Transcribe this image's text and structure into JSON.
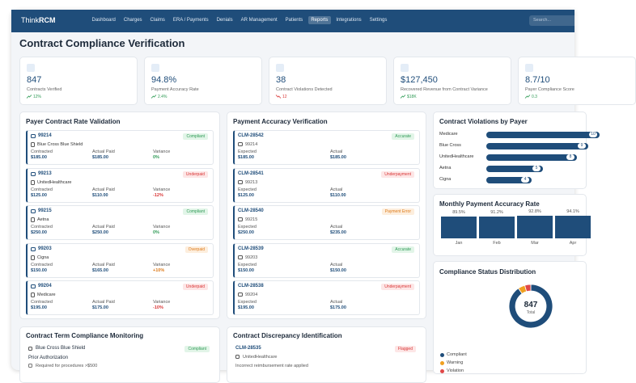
{
  "nav": {
    "logo": {
      "prefix": "Think",
      "suffix": "RCM"
    },
    "items": [
      "Dashboard",
      "Charges",
      "Claims",
      "ERA / Payments",
      "Denials",
      "AR Management",
      "Patients",
      "Reports",
      "Integrations",
      "Settings"
    ],
    "search": "Search..."
  },
  "page_title": "Contract Compliance Verification",
  "kpis": [
    {
      "value": "847",
      "label": "Contracts Verified",
      "trend": "12%",
      "direction": "up"
    },
    {
      "value": "94.8%",
      "label": "Payment Accuracy Rate",
      "trend": "2.4%",
      "direction": "up"
    },
    {
      "value": "38",
      "label": "Contract Violations Detected",
      "trend": "12",
      "direction": "down"
    },
    {
      "value": "$127,450",
      "label": "Recovered Revenue from Contract Variance",
      "trend": "$18K",
      "direction": "up"
    },
    {
      "value": "8.7/10",
      "label": "Payer Compliance Score",
      "trend": "0.3",
      "direction": "up"
    }
  ],
  "rate_validation": {
    "title": "Payer Contract Rate Validation",
    "labels": {
      "contracted": "Contracted",
      "actual": "Actual Paid",
      "variance": "Variance"
    },
    "items": [
      {
        "code": "99214",
        "payer": "Blue Cross Blue Shield",
        "status": "Compliant",
        "tone": "good",
        "contracted": "$185.00",
        "actual": "$185.00",
        "variance": "0%"
      },
      {
        "code": "99213",
        "payer": "UnitedHealthcare",
        "status": "Underpaid",
        "tone": "bad",
        "contracted": "$125.00",
        "actual": "$110.00",
        "variance": "-12%"
      },
      {
        "code": "99215",
        "payer": "Aetna",
        "status": "Compliant",
        "tone": "good",
        "contracted": "$250.00",
        "actual": "$250.00",
        "variance": "0%"
      },
      {
        "code": "99203",
        "payer": "Cigna",
        "status": "Overpaid",
        "tone": "warn",
        "contracted": "$150.00",
        "actual": "$165.00",
        "variance": "+10%"
      },
      {
        "code": "99204",
        "payer": "Medicare",
        "status": "Underpaid",
        "tone": "bad",
        "contracted": "$195.00",
        "actual": "$175.00",
        "variance": "-10%"
      }
    ]
  },
  "payment_accuracy": {
    "title": "Payment Accuracy Verification",
    "labels": {
      "expected": "Expected",
      "actual": "Actual"
    },
    "items": [
      {
        "claim": "CLM-28542",
        "code": "99214",
        "status": "Accurate",
        "tone": "good",
        "expected": "$185.00",
        "actual": "$185.00"
      },
      {
        "claim": "CLM-28541",
        "code": "99213",
        "status": "Underpayment",
        "tone": "bad",
        "expected": "$125.00",
        "actual": "$110.00"
      },
      {
        "claim": "CLM-28540",
        "code": "99215",
        "status": "Payment Error",
        "tone": "warn",
        "expected": "$250.00",
        "actual": "$235.00"
      },
      {
        "claim": "CLM-28539",
        "code": "99203",
        "status": "Accurate",
        "tone": "good",
        "expected": "$150.00",
        "actual": "$150.00"
      },
      {
        "claim": "CLM-28538",
        "code": "99204",
        "status": "Underpayment",
        "tone": "bad",
        "expected": "$195.00",
        "actual": "$175.00"
      }
    ]
  },
  "violations_by_payer": {
    "type": "bar",
    "title": "Contract Violations by Payer",
    "categories": [
      "Medicare",
      "Blue Cross",
      "UnitedHealthcare",
      "Aetna",
      "Cigna"
    ],
    "values": [
      10,
      9,
      8,
      5,
      4
    ],
    "color": "#1f4d7a"
  },
  "monthly_accuracy": {
    "type": "bar",
    "title": "Monthly Payment Accuracy Rate",
    "categories": [
      "Jan",
      "Feb",
      "Mar",
      "Apr"
    ],
    "values": [
      89.5,
      91.2,
      92.8,
      94.1
    ],
    "value_labels": [
      "89.5%",
      "91.2%",
      "92.8%",
      "94.1%"
    ],
    "ylim": [
      0,
      100
    ],
    "color": "#1f4d7a"
  },
  "compliance_status": {
    "type": "pie",
    "title": "Compliance Status Distribution",
    "total": 847,
    "total_label": "Total",
    "categories": [
      "Compliant",
      "Warning",
      "Violation"
    ],
    "values": [
      765,
      44,
      38
    ],
    "colors": [
      "#1f4d7a",
      "#f0a020",
      "#e04848"
    ]
  },
  "term_monitoring": {
    "title": "Contract Term Compliance Monitoring",
    "payer": "Blue Cross Blue Shield",
    "status": "Compliant",
    "tone": "good",
    "term": "Prior Authorization",
    "detail": "Required for procedures >$500"
  },
  "discrepancy": {
    "title": "Contract Discrepancy Identification",
    "claim": "CLM-28535",
    "status": "Flagged",
    "tone": "bad",
    "payer": "UnitedHealthcare",
    "detail": "Incorrect reimbursement rate applied"
  }
}
